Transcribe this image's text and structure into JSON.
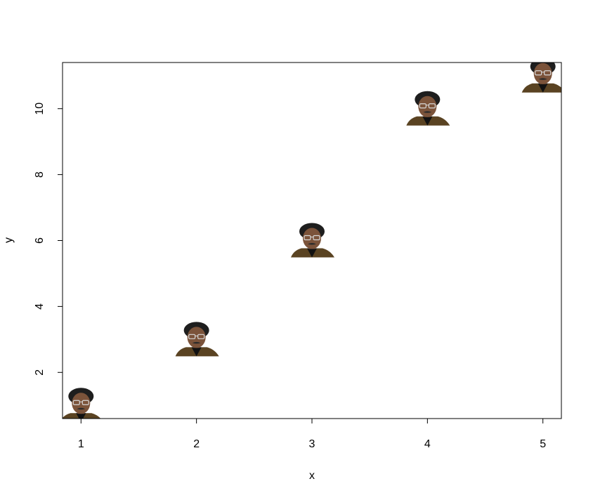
{
  "chart_data": {
    "type": "scatter",
    "title": "",
    "xlabel": "x",
    "ylabel": "y",
    "xlim": [
      0.84,
      5.16
    ],
    "ylim": [
      0.6,
      11.4
    ],
    "x_ticks": [
      1,
      2,
      3,
      4,
      5
    ],
    "y_ticks": [
      2,
      4,
      6,
      8,
      10
    ],
    "x_tick_labels": [
      "1",
      "2",
      "3",
      "4",
      "5"
    ],
    "y_tick_labels": [
      "2",
      "4",
      "6",
      "8",
      "10"
    ],
    "grid": false,
    "legend": "none",
    "marker": "portrait-image",
    "points": [
      {
        "x": 1,
        "y": 1
      },
      {
        "x": 2,
        "y": 3
      },
      {
        "x": 3,
        "y": 6
      },
      {
        "x": 4,
        "y": 10
      },
      {
        "x": 5,
        "y": 11
      }
    ]
  }
}
